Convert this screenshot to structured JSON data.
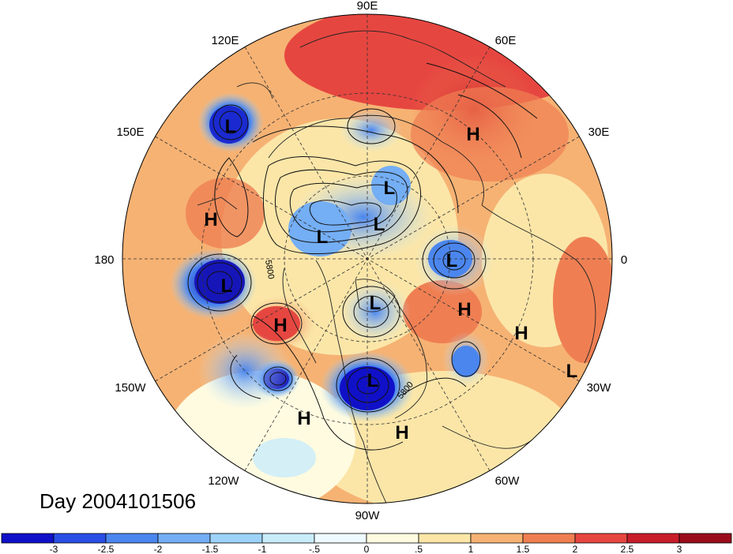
{
  "map": {
    "longitude_labels": [
      {
        "id": "90e",
        "text": "90E"
      },
      {
        "id": "60e",
        "text": "60E"
      },
      {
        "id": "30e",
        "text": "30E"
      },
      {
        "id": "0",
        "text": "0"
      },
      {
        "id": "30w",
        "text": "30W"
      },
      {
        "id": "60w",
        "text": "60W"
      },
      {
        "id": "90w",
        "text": "90W"
      },
      {
        "id": "120w",
        "text": "120W"
      },
      {
        "id": "150w",
        "text": "150W"
      },
      {
        "id": "180",
        "text": "180"
      },
      {
        "id": "150e",
        "text": "150E"
      },
      {
        "id": "120e",
        "text": "120E"
      }
    ],
    "pressure_centers": [
      {
        "id": "l-ne-pacific-1",
        "text": "L"
      },
      {
        "id": "h-east-asia",
        "text": "H"
      },
      {
        "id": "h-europe",
        "text": "H"
      },
      {
        "id": "l-arctic-1",
        "text": "L"
      },
      {
        "id": "l-arctic-2",
        "text": "L"
      },
      {
        "id": "l-arctic-3",
        "text": "L"
      },
      {
        "id": "l-north-atlantic",
        "text": "L"
      },
      {
        "id": "l-bering",
        "text": "L"
      },
      {
        "id": "h-alaska",
        "text": "H"
      },
      {
        "id": "l-hudson",
        "text": "L"
      },
      {
        "id": "h-atlantic-1",
        "text": "H"
      },
      {
        "id": "h-atlantic-2",
        "text": "H"
      },
      {
        "id": "l-atlantic-sw",
        "text": "L"
      },
      {
        "id": "l-great-lakes",
        "text": "L"
      },
      {
        "id": "h-pacific-sw",
        "text": "H"
      },
      {
        "id": "h-caribbean",
        "text": "H"
      }
    ],
    "contour_labels": [
      {
        "id": "c5800-a",
        "text": "5800"
      },
      {
        "id": "c5800-b",
        "text": "5800"
      }
    ],
    "day_label": "Day 2004101506"
  },
  "colorbar": {
    "tick_labels": [
      "-3",
      "-2.5",
      "-2",
      "-1.5",
      "-1",
      "-.5",
      "0",
      ".5",
      "1",
      "1.5",
      "2",
      "2.5",
      "3"
    ],
    "colors": [
      "#1010c8",
      "#2a4fe6",
      "#4b86ee",
      "#74aef4",
      "#9dd3f8",
      "#c9ecfb",
      "#eefaff",
      "#fffbe0",
      "#fbe6a8",
      "#f6b273",
      "#ef7f52",
      "#e64640",
      "#c81d2a",
      "#9a0c1c"
    ]
  }
}
